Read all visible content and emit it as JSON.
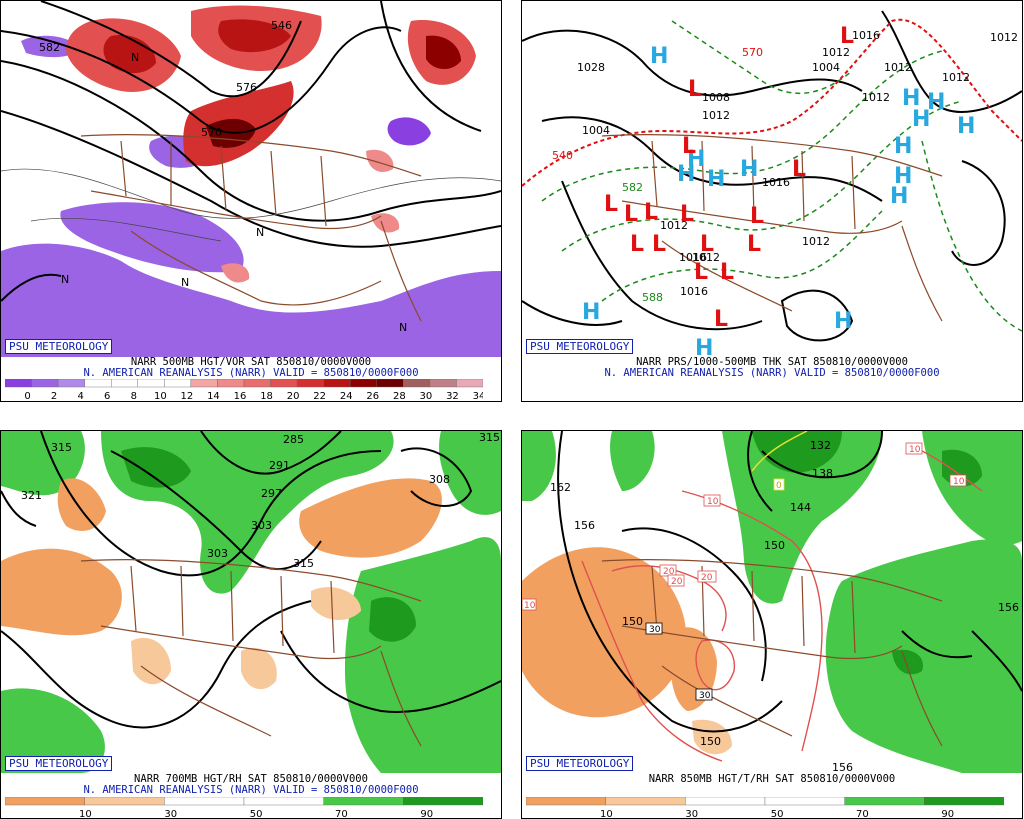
{
  "panels": [
    {
      "id": "vor500",
      "brand": "PSU METEOROLOGY",
      "title": "NARR 500MB HGT/VOR SAT 850810/0000V000",
      "subtitle": "N. AMERICAN REANALYSIS (NARR) VALID = 850810/0000F000",
      "colorbar": {
        "labels": [
          "0",
          "2",
          "4",
          "6",
          "8",
          "10",
          "12",
          "14",
          "16",
          "18",
          "20",
          "22",
          "24",
          "26",
          "28",
          "30",
          "32",
          "34"
        ],
        "colors": [
          "#8a3fe0",
          "#9a64e4",
          "#b08ae8",
          "#ffffff",
          "#ffffff",
          "#ffffff",
          "#ffffff",
          "#f2a6a6",
          "#ee8a8a",
          "#e86e6e",
          "#e25050",
          "#d43030",
          "#b81414",
          "#8c0000",
          "#6c0000",
          "#a06060",
          "#c07e86",
          "#e8a8b8"
        ]
      },
      "map_labels": [
        "582",
        "546",
        "576",
        "570",
        "N",
        "N",
        "N",
        "N",
        "N"
      ]
    },
    {
      "id": "thk",
      "brand": "PSU METEOROLOGY",
      "title": "NARR PRS/1000-500MB THK SAT 850810/0000V000",
      "subtitle": "N. AMERICAN REANALYSIS (NARR) VALID = 850810/0000F000",
      "map_labels": [
        "1028",
        "1004",
        "1012",
        "1012",
        "1012",
        "1004",
        "1016",
        "1016",
        "1012",
        "1016",
        "1012",
        "1016",
        "1012",
        "1008",
        "1012",
        "1012",
        "1012",
        "540",
        "570",
        "582",
        "588"
      ]
    },
    {
      "id": "rh700",
      "brand": "PSU METEOROLOGY",
      "title": "NARR 700MB HGT/RH SAT 850810/0000V000",
      "subtitle": "N. AMERICAN REANALYSIS (NARR) VALID = 850810/0000F000",
      "colorbar": {
        "labels": [
          "10",
          "30",
          "50",
          "70",
          "90"
        ],
        "colors": [
          "#f2a060",
          "#f7c89a",
          "#ffffff",
          "#ffffff",
          "#48c848",
          "#1e9a1e"
        ]
      },
      "map_labels": [
        "315",
        "321",
        "285",
        "291",
        "297",
        "303",
        "303",
        "308",
        "315",
        "315"
      ]
    },
    {
      "id": "t850",
      "brand": "PSU METEOROLOGY",
      "title": "NARR 850MB HGT/T/RH SAT 850810/0000V000",
      "subtitle": "",
      "colorbar": {
        "labels": [
          "10",
          "30",
          "50",
          "70",
          "90"
        ],
        "colors": [
          "#f2a060",
          "#f7c89a",
          "#ffffff",
          "#ffffff",
          "#48c848",
          "#1e9a1e"
        ]
      },
      "map_labels": [
        "132",
        "138",
        "144",
        "150",
        "156",
        "156",
        "156",
        "162",
        "150",
        "150",
        "10",
        "10",
        "10",
        "10",
        "0",
        "20",
        "20",
        "20",
        "30",
        "30"
      ]
    }
  ]
}
